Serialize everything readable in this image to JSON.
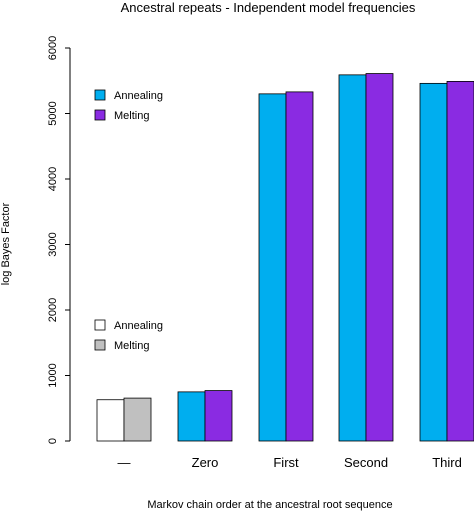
{
  "chart_data": {
    "type": "bar",
    "title": "Ancestral repeats - Independent model frequencies",
    "xlabel": "Markov chain order at the ancestral root sequence",
    "ylabel": "log Bayes Factor",
    "ylim": [
      0,
      6000
    ],
    "yticks": [
      "0",
      "1000",
      "2000",
      "3000",
      "4000",
      "5000",
      "6000"
    ],
    "categories": [
      "—",
      "Zero",
      "First",
      "Second",
      "Third"
    ],
    "series": [
      {
        "name": "Annealing",
        "values": [
          630,
          750,
          5300,
          5590,
          5460
        ],
        "colors": [
          "#ffffff",
          "#00aeef",
          "#00aeef",
          "#00aeef",
          "#00aeef"
        ]
      },
      {
        "name": "Melting",
        "values": [
          655,
          770,
          5330,
          5610,
          5490
        ],
        "colors": [
          "#c0c0c0",
          "#8a2be2",
          "#8a2be2",
          "#8a2be2",
          "#8a2be2"
        ]
      }
    ],
    "legends": [
      {
        "placement": "upper-left",
        "entries": [
          {
            "label": "Annealing",
            "color": "#00aeef"
          },
          {
            "label": "Melting",
            "color": "#8a2be2"
          }
        ]
      },
      {
        "placement": "lower-left",
        "entries": [
          {
            "label": "Annealing",
            "color": "#ffffff"
          },
          {
            "label": "Melting",
            "color": "#c0c0c0"
          }
        ]
      }
    ],
    "grid": false
  }
}
